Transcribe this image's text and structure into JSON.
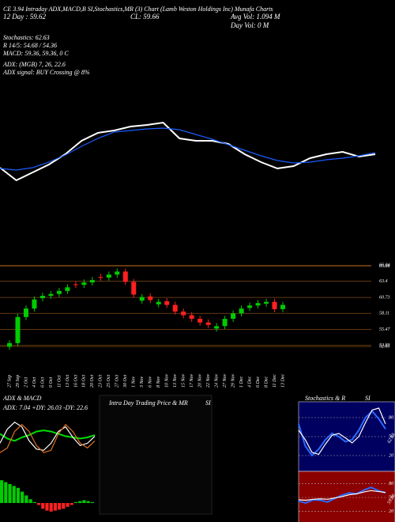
{
  "header": {
    "line1": "CE 3.94 Intraday ADX,MACD,B   SI,Stochastics,MR   (3) Chart   (Lamb Weston Holdings Inc) Munafa Charts",
    "day": "12 Day : 59.62",
    "cl": "CL: 59.66",
    "avgvol": "Avg Vol: 1.094  M",
    "dayvol": "Day Vol: 0  M",
    "stoch": "Stochastics: 62.63",
    "r": "R 14/5: 54.68 / 54.36",
    "macd": "MACD: 59.36, 59.36, 0  C",
    "adx": "ADX:                       (MGB) 7, 26, 22.6",
    "adxsignal": "ADX  signal:                         BUY Crossing @ 8%",
    "intraday_title": "Intra Day Trading Price  & MR",
    "intraday_sub": "SI"
  },
  "chart_data": [
    {
      "type": "line",
      "ylim": [
        55,
        66
      ],
      "series": [
        {
          "color": "#ffffff",
          "values": [
            58.08,
            56.32,
            57.42,
            58.52,
            59.95,
            61.82,
            62.92,
            63.25,
            63.8,
            64.02,
            64.35,
            62.15,
            61.82,
            61.82,
            61.38,
            59.95,
            58.85,
            57.97,
            58.3,
            59.4,
            59.95,
            60.28,
            59.62,
            59.95
          ]
        },
        {
          "color": "#1a5cff",
          "values": [
            57.97,
            57.75,
            58.08,
            58.85,
            59.84,
            61.05,
            62.15,
            63.03,
            63.25,
            63.47,
            63.58,
            63.36,
            62.7,
            62.04,
            61.27,
            60.5,
            59.73,
            59.07,
            58.74,
            58.85,
            59.18,
            59.4,
            59.73,
            60.17
          ]
        }
      ]
    },
    {
      "type": "candlestick",
      "ylim": [
        52,
        67
      ],
      "yticks": [
        66.04,
        65.88,
        63.4,
        60.73,
        58.11,
        55.47,
        52.83,
        52.65
      ],
      "up_color": "#00cc00",
      "down_color": "#ff2020",
      "categories": [
        "27 Sep",
        "29 Sep",
        "2 Oct",
        "4 Oct",
        "6 Oct",
        "9 Oct",
        "11 Oct",
        "13 Oct",
        "16 Oct",
        "18 Oct",
        "20 Oct",
        "23 Oct",
        "25 Oct",
        "27 Oct",
        "30 Oct",
        "1 Nov",
        "3 Nov",
        "6 Nov",
        "8 Nov",
        "10 Nov",
        "13 Nov",
        "15 Nov",
        "17 Nov",
        "20 Nov",
        "22 Nov",
        "24 Nov",
        "27 Nov",
        "29 Nov",
        "1 Dec",
        "4 Dec",
        "6 Dec",
        "8 Dec",
        "11 Dec",
        "13 Dec"
      ],
      "open": [
        52.6,
        53.2,
        57.5,
        58.9,
        60.6,
        61.0,
        61.3,
        61.8,
        62.9,
        62.8,
        63.2,
        64.1,
        64.0,
        64.5,
        65.0,
        63.3,
        60.2,
        60.9,
        59.6,
        60.1,
        59.5,
        58.4,
        57.8,
        57.2,
        56.6,
        55.6,
        56.0,
        57.2,
        58.1,
        59.0,
        59.4,
        59.7,
        60.0,
        58.8
      ],
      "high": [
        53.7,
        58.0,
        59.4,
        60.9,
        61.5,
        61.8,
        62.3,
        62.9,
        63.4,
        63.7,
        64.1,
        64.6,
        65.0,
        65.5,
        65.5,
        63.8,
        61.3,
        61.4,
        60.5,
        60.6,
        60.0,
        58.9,
        58.3,
        57.7,
        57.1,
        56.5,
        57.7,
        58.6,
        59.4,
        59.9,
        60.3,
        60.5,
        60.5,
        60.0
      ],
      "low": [
        52.1,
        52.7,
        57.0,
        58.4,
        60.1,
        60.5,
        60.8,
        61.3,
        62.3,
        62.3,
        62.7,
        63.5,
        63.5,
        64.0,
        62.8,
        60.7,
        59.7,
        59.8,
        59.1,
        59.0,
        57.9,
        57.3,
        56.7,
        56.1,
        55.7,
        55.1,
        55.5,
        56.7,
        57.6,
        58.5,
        58.9,
        59.2,
        58.3,
        58.3
      ],
      "close": [
        53.2,
        57.5,
        58.9,
        60.4,
        61.0,
        61.3,
        61.8,
        62.4,
        62.8,
        63.2,
        63.6,
        64.0,
        64.5,
        65.0,
        63.3,
        61.2,
        60.8,
        60.3,
        60.0,
        59.5,
        58.4,
        57.8,
        57.2,
        56.6,
        56.2,
        56.0,
        57.2,
        58.1,
        58.9,
        59.4,
        59.8,
        60.0,
        58.8,
        59.5
      ]
    },
    {
      "type": "line",
      "title": "ADX  & MACD",
      "subtitle": "ADX: 7.04  +DY: 26.03 -DY: 22.6",
      "ylim": [
        0,
        50
      ],
      "series": [
        {
          "color": "#00dd00",
          "values": [
            28,
            24,
            22,
            25,
            27,
            30,
            31,
            30,
            28,
            26,
            25,
            24,
            25,
            27
          ]
        },
        {
          "color": "#ffffff",
          "values": [
            20,
            32,
            38,
            34,
            22,
            15,
            14,
            20,
            30,
            34,
            25,
            18,
            20,
            26
          ]
        },
        {
          "color": "#e07020",
          "values": [
            12,
            16,
            30,
            36,
            30,
            18,
            12,
            14,
            28,
            36,
            30,
            20,
            16,
            22
          ]
        }
      ]
    },
    {
      "type": "bar",
      "ylim": [
        -1,
        1.5
      ],
      "positive_color": "#00cc00",
      "negative_color": "#ff2020",
      "values": [
        1.2,
        1.1,
        1.0,
        0.9,
        0.8,
        0.6,
        0.4,
        0.2,
        0.05,
        -0.1,
        -0.3,
        -0.4,
        -0.45,
        -0.4,
        -0.35,
        -0.3,
        -0.2,
        -0.1,
        0.05,
        0.1,
        0.15,
        0.1,
        0.05
      ]
    },
    {
      "type": "line",
      "title": "Stochastics  & R",
      "subtitle": "SI",
      "ylim": [
        0,
        100
      ],
      "yticks": [
        80,
        50,
        20
      ],
      "value_label": "62.63",
      "background": "#000060",
      "series": [
        {
          "color": "#2a6aff",
          "values": [
            70,
            35,
            20,
            30,
            45,
            55,
            50,
            42,
            45,
            60,
            80,
            90,
            78,
            62
          ]
        },
        {
          "color": "#ffffff",
          "values": [
            60,
            45,
            25,
            22,
            38,
            52,
            55,
            48,
            40,
            50,
            72,
            92,
            95,
            70
          ]
        }
      ]
    },
    {
      "type": "line",
      "ylim": [
        0,
        100
      ],
      "yticks": [
        80,
        50,
        20
      ],
      "value_label": "59.36",
      "background": "#8b0000",
      "series": [
        {
          "color": "#2a6aff",
          "values": [
            42,
            38,
            45,
            44,
            40,
            48,
            55,
            60,
            58,
            66,
            72,
            65,
            60
          ]
        },
        {
          "color": "#ffffff",
          "values": [
            45,
            44,
            46,
            47,
            46,
            49,
            52,
            56,
            58,
            62,
            65,
            63,
            61
          ]
        }
      ]
    }
  ]
}
